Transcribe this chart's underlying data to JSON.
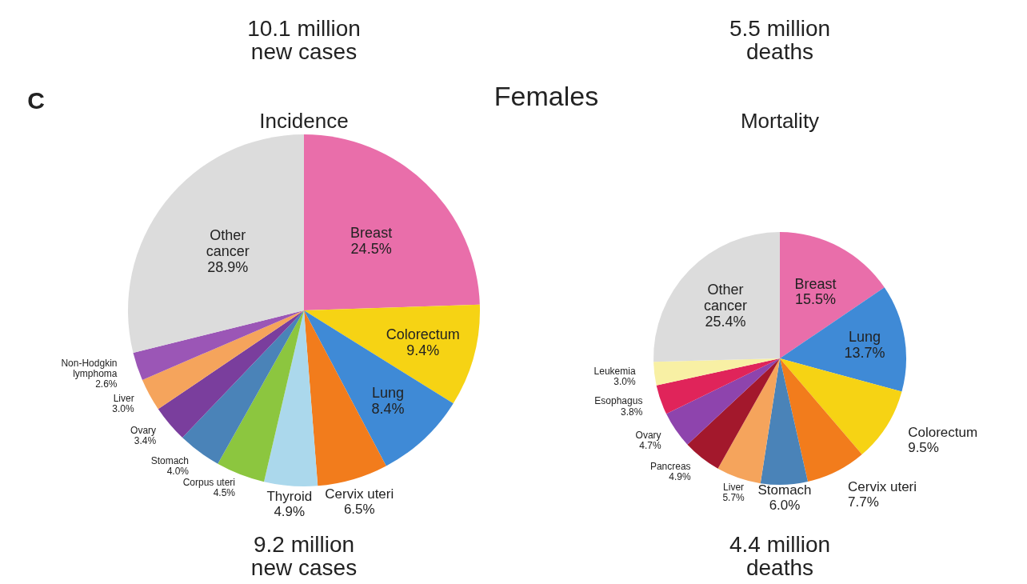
{
  "chart_data": [
    {
      "type": "pie",
      "title": "Incidence",
      "categories": [
        "Breast",
        "Colorectum",
        "Lung",
        "Cervix uteri",
        "Thyroid",
        "Corpus uteri",
        "Stomach",
        "Ovary",
        "Liver",
        "Non-Hodgkin lymphoma",
        "Other cancer"
      ],
      "values": [
        24.5,
        9.4,
        8.4,
        6.5,
        4.9,
        4.5,
        4.0,
        3.4,
        3.0,
        2.6,
        28.9
      ],
      "value_labels": [
        "24.5%",
        "9.4%",
        "8.4%",
        "6.5%",
        "4.9%",
        "4.5%",
        "4.0%",
        "3.4%",
        "3.0%",
        "2.6%",
        "28.9%"
      ],
      "colors": [
        "#e96eaa",
        "#f6d314",
        "#3f8ad6",
        "#f27c1c",
        "#abd8ec",
        "#8cc63f",
        "#4a83b8",
        "#7a3e9d",
        "#f5a45c",
        "#9b56b6",
        "#dcdcdc"
      ],
      "annotations": [
        "10.1 million new cases",
        "C",
        "Females",
        "9.2 million new cases"
      ]
    },
    {
      "type": "pie",
      "title": "Mortality",
      "categories": [
        "Breast",
        "Lung",
        "Colorectum",
        "Cervix uteri",
        "Stomach",
        "Liver",
        "Pancreas",
        "Ovary",
        "Esophagus",
        "Leukemia",
        "Other cancer"
      ],
      "values": [
        15.5,
        13.7,
        9.5,
        7.7,
        6.0,
        5.7,
        4.9,
        4.7,
        3.8,
        3.0,
        25.4
      ],
      "value_labels": [
        "15.5%",
        "13.7%",
        "9.5%",
        "7.7%",
        "6.0%",
        "5.7%",
        "4.9%",
        "4.7%",
        "3.8%",
        "3.0%",
        "25.4%"
      ],
      "colors": [
        "#e96eaa",
        "#3f8ad6",
        "#f6d314",
        "#f27c1c",
        "#4a83b8",
        "#f5a45c",
        "#a3182c",
        "#8e44ad",
        "#e0245a",
        "#f8f0a4",
        "#dcdcdc"
      ],
      "annotations": [
        "5.5 million deaths",
        "4.4 million deaths"
      ]
    }
  ]
}
